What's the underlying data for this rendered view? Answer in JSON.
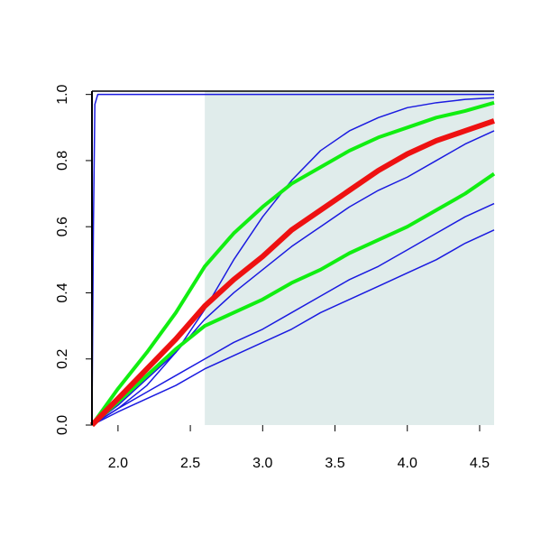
{
  "chart_data": {
    "type": "line",
    "x": [
      1.82,
      2.0,
      2.2,
      2.4,
      2.6,
      2.8,
      3.0,
      3.2,
      3.4,
      3.6,
      3.8,
      4.0,
      4.2,
      4.4,
      4.6
    ],
    "series": [
      {
        "color": "#e0eceb",
        "shade": true,
        "x": [
          2.6,
          4.6
        ],
        "values": [
          1.01,
          1.01
        ]
      },
      {
        "color": "#1a1ae0",
        "linewidth": 1.5,
        "x": [
          1.82,
          1.83,
          1.84,
          1.86,
          4.6
        ],
        "values": [
          0,
          0.6,
          0.97,
          1.0,
          1.0
        ]
      },
      {
        "color": "#1a1ae0",
        "linewidth": 1.5,
        "values": [
          0,
          0.05,
          0.12,
          0.22,
          0.35,
          0.5,
          0.63,
          0.74,
          0.83,
          0.89,
          0.93,
          0.96,
          0.975,
          0.985,
          0.99
        ]
      },
      {
        "color": "#1a1ae0",
        "linewidth": 1.5,
        "values": [
          0,
          0.06,
          0.14,
          0.22,
          0.32,
          0.4,
          0.47,
          0.54,
          0.6,
          0.66,
          0.71,
          0.75,
          0.8,
          0.85,
          0.89
        ]
      },
      {
        "color": "#1a1ae0",
        "linewidth": 1.5,
        "values": [
          0,
          0.05,
          0.1,
          0.15,
          0.2,
          0.25,
          0.29,
          0.34,
          0.39,
          0.44,
          0.48,
          0.53,
          0.58,
          0.63,
          0.67
        ]
      },
      {
        "color": "#1a1ae0",
        "linewidth": 1.5,
        "values": [
          0,
          0.04,
          0.08,
          0.12,
          0.17,
          0.21,
          0.25,
          0.29,
          0.34,
          0.38,
          0.42,
          0.46,
          0.5,
          0.55,
          0.59
        ]
      },
      {
        "color": "#11ee11",
        "linewidth": 4,
        "values": [
          0,
          0.11,
          0.22,
          0.34,
          0.48,
          0.58,
          0.66,
          0.73,
          0.78,
          0.83,
          0.87,
          0.9,
          0.93,
          0.95,
          0.975
        ]
      },
      {
        "color": "#11ee11",
        "linewidth": 4,
        "values": [
          0,
          0.07,
          0.15,
          0.23,
          0.3,
          0.34,
          0.38,
          0.43,
          0.47,
          0.52,
          0.56,
          0.6,
          0.65,
          0.7,
          0.76
        ]
      },
      {
        "color": "#ee1111",
        "linewidth": 6,
        "values": [
          0,
          0.08,
          0.17,
          0.26,
          0.36,
          0.44,
          0.51,
          0.59,
          0.65,
          0.71,
          0.77,
          0.82,
          0.86,
          0.89,
          0.92
        ]
      }
    ],
    "xlim": [
      1.82,
      4.6
    ],
    "ylim": [
      0,
      1.01
    ],
    "xticks": [
      {
        "value": 2,
        "label": "2.0"
      },
      {
        "value": 2.5,
        "label": "2.5"
      },
      {
        "value": 3,
        "label": "3.0"
      },
      {
        "value": 3.5,
        "label": "3.5"
      },
      {
        "value": 4,
        "label": "4.0"
      },
      {
        "value": 4.5,
        "label": "4.5"
      }
    ],
    "yticks": [
      {
        "value": 0,
        "label": "0.0"
      },
      {
        "value": 0.2,
        "label": "0.2"
      },
      {
        "value": 0.4,
        "label": "0.4"
      },
      {
        "value": 0.6,
        "label": "0.6"
      },
      {
        "value": 0.8,
        "label": "0.8"
      },
      {
        "value": 1,
        "label": "1.0"
      }
    ]
  }
}
